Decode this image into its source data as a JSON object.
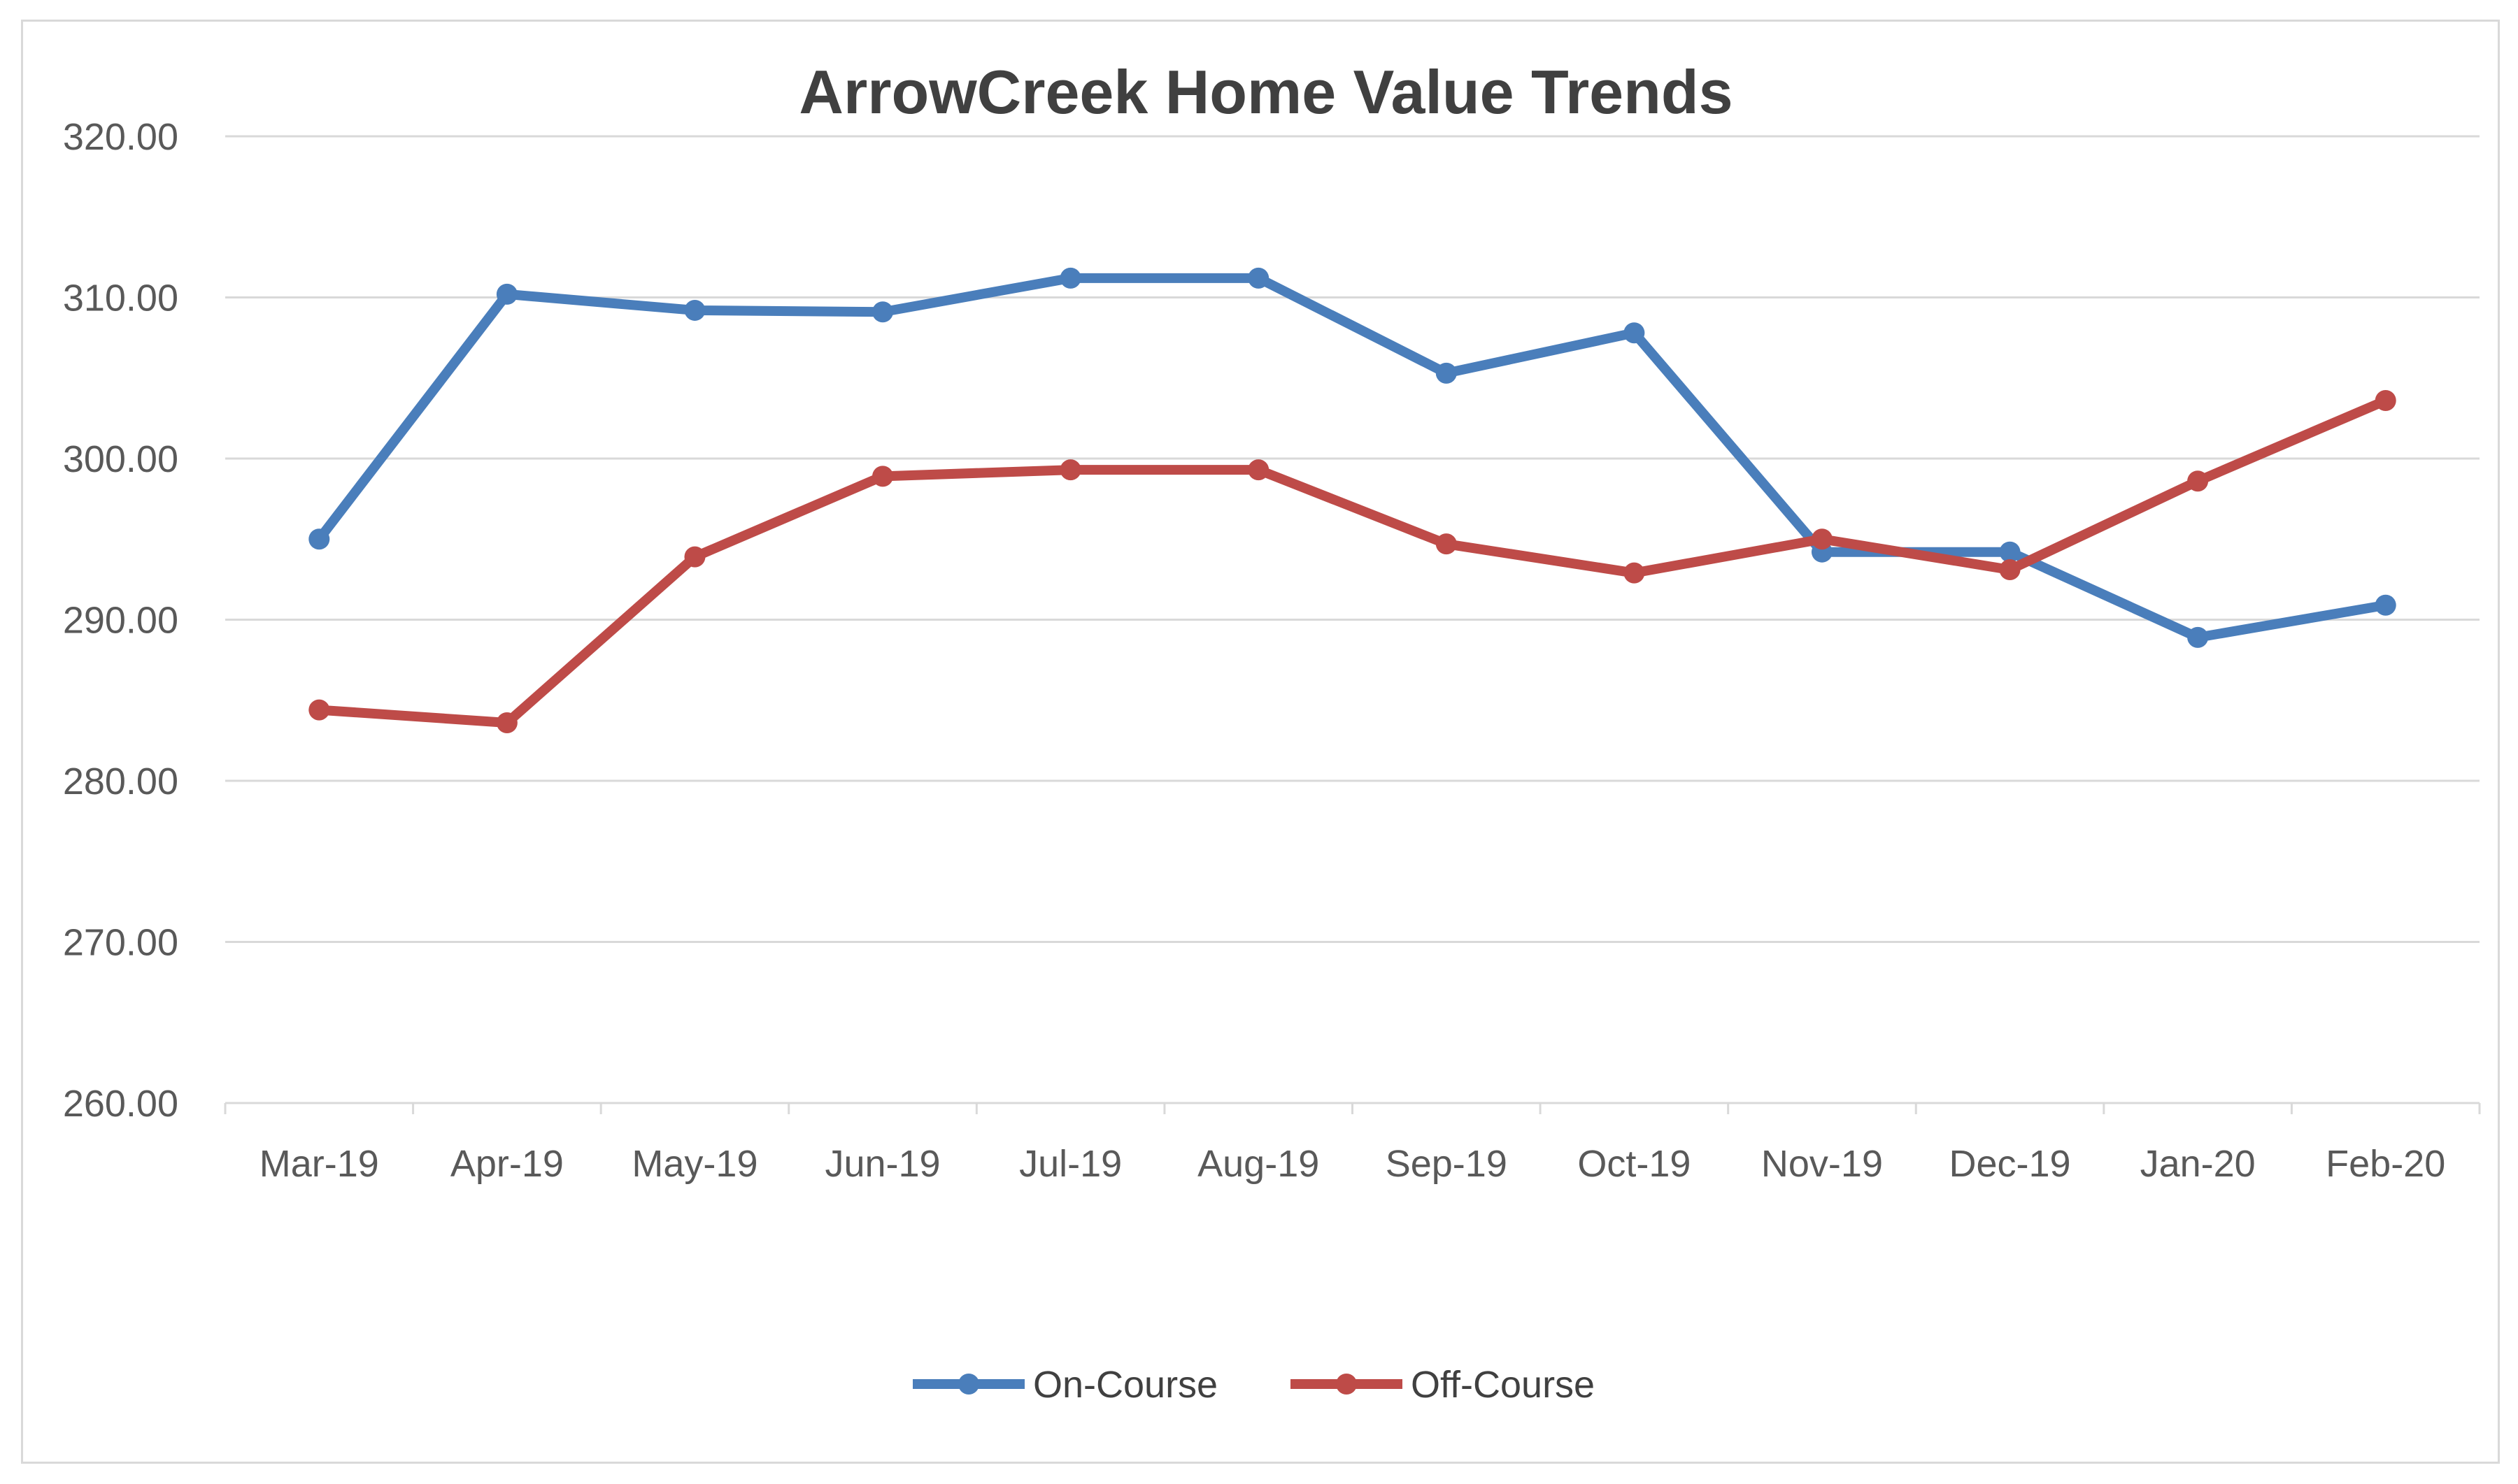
{
  "chart_data": {
    "type": "line",
    "title": "ArrowCreek Home Value Trends",
    "xlabel": "",
    "ylabel": "",
    "categories": [
      "Mar-19",
      "Apr-19",
      "May-19",
      "Jun-19",
      "Jul-19",
      "Aug-19",
      "Sep-19",
      "Oct-19",
      "Nov-19",
      "Dec-19",
      "Jan-20",
      "Feb-20"
    ],
    "series": [
      {
        "name": "On-Course",
        "color": "#4a7ebb",
        "values": [
          295.0,
          310.2,
          309.2,
          309.1,
          311.2,
          311.2,
          305.3,
          307.8,
          294.2,
          294.2,
          288.9,
          290.9
        ]
      },
      {
        "name": "Off-Course",
        "color": "#be4b48",
        "values": [
          284.4,
          283.6,
          293.9,
          298.9,
          299.3,
          299.3,
          294.7,
          292.9,
          295.0,
          293.1,
          298.6,
          303.6
        ]
      }
    ],
    "ylim": [
      260,
      320
    ],
    "yticks": [
      "260.00",
      "270.00",
      "280.00",
      "290.00",
      "300.00",
      "310.00",
      "320.00"
    ],
    "grid": true,
    "legend": "bottom",
    "gridline_color": "#d9d9d9"
  }
}
